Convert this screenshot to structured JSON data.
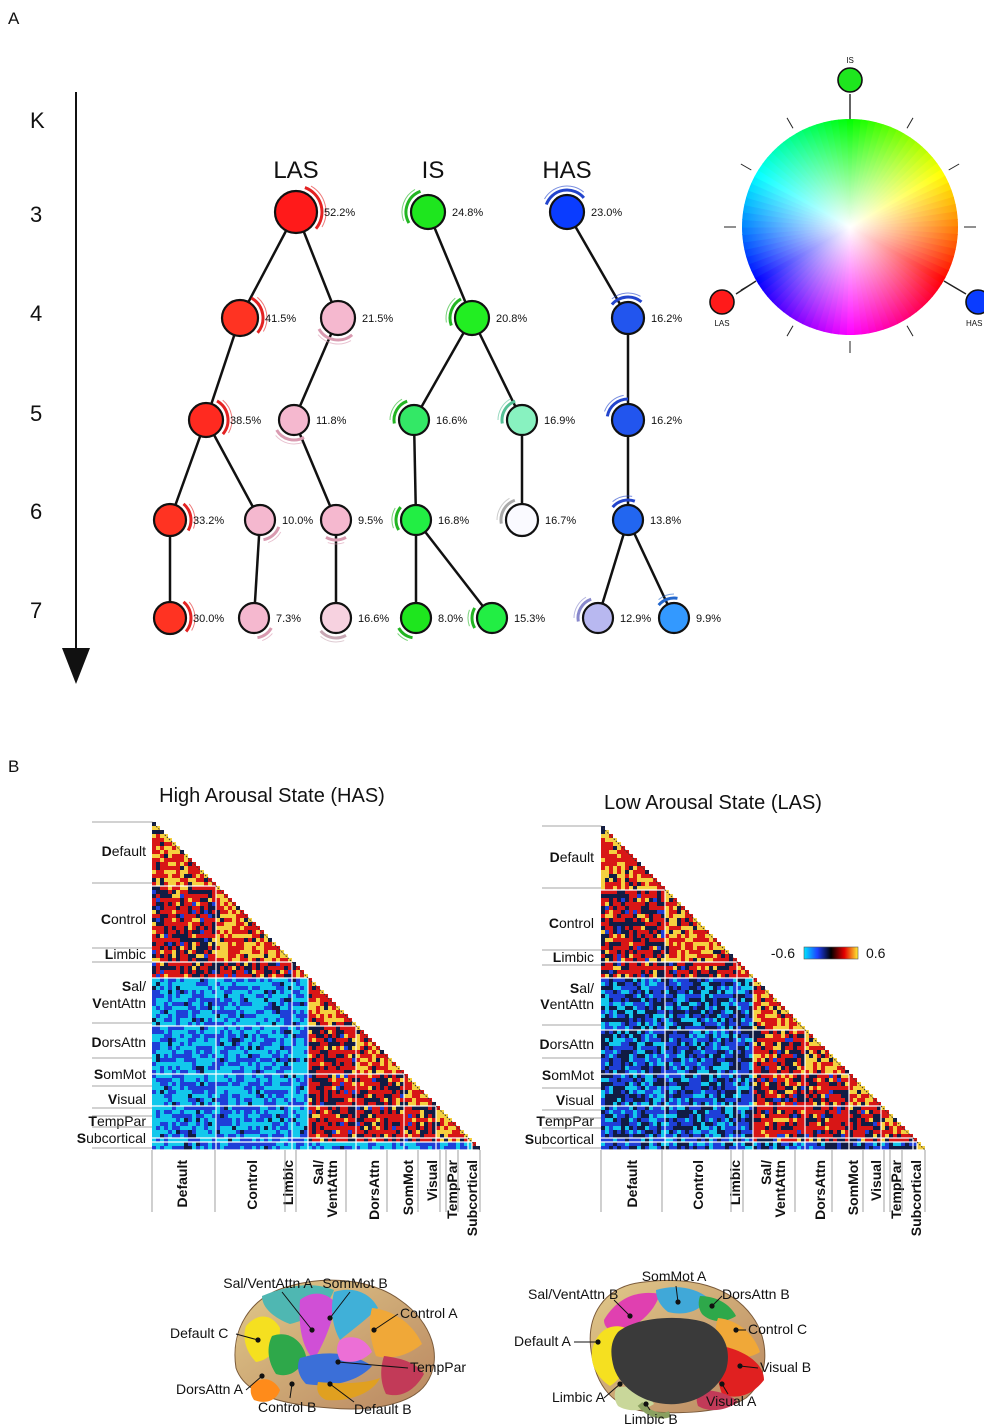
{
  "panel_a": {
    "label": "A",
    "k_label": "K",
    "k_levels": [
      "3",
      "4",
      "5",
      "6",
      "7"
    ],
    "columns": [
      "LAS",
      "IS",
      "HAS"
    ],
    "wheel": {
      "top": "IS",
      "left": "LAS",
      "right": "HAS"
    },
    "nodes": [
      {
        "id": "las3",
        "k": "3",
        "pct": "52.2%",
        "color": "#ff1a1a",
        "arc": "#e32222"
      },
      {
        "id": "is3",
        "k": "3",
        "pct": "24.8%",
        "color": "#1ee61e",
        "arc": "#22b522"
      },
      {
        "id": "has3",
        "k": "3",
        "pct": "23.0%",
        "color": "#0a3cff",
        "arc": "#2244cc"
      },
      {
        "id": "las4a",
        "k": "4",
        "pct": "41.5%",
        "color": "#ff3322",
        "arc": "#e32222"
      },
      {
        "id": "las4b",
        "k": "4",
        "pct": "21.5%",
        "color": "#f5b8cf",
        "arc": "#d99ab0"
      },
      {
        "id": "is4",
        "k": "4",
        "pct": "20.8%",
        "color": "#22ee22",
        "arc": "#22b522"
      },
      {
        "id": "has4",
        "k": "4",
        "pct": "16.2%",
        "color": "#2255ee",
        "arc": "#2244cc"
      },
      {
        "id": "las5a",
        "k": "5",
        "pct": "38.5%",
        "color": "#ff2a20",
        "arc": "#e32222"
      },
      {
        "id": "las5b",
        "k": "5",
        "pct": "11.8%",
        "color": "#f5b8cf",
        "arc": "#d99ab0"
      },
      {
        "id": "is5a",
        "k": "5",
        "pct": "16.6%",
        "color": "#33e866",
        "arc": "#22b522"
      },
      {
        "id": "is5b",
        "k": "5",
        "pct": "16.9%",
        "color": "#88f2c0",
        "arc": "#55c096"
      },
      {
        "id": "has5",
        "k": "5",
        "pct": "16.2%",
        "color": "#2255ee",
        "arc": "#2244cc"
      },
      {
        "id": "las6a",
        "k": "6",
        "pct": "33.2%",
        "color": "#ff3322",
        "arc": "#e32222"
      },
      {
        "id": "las6b",
        "k": "6",
        "pct": "10.0%",
        "color": "#f5b8cf",
        "arc": "#d99ab0"
      },
      {
        "id": "las6c",
        "k": "6",
        "pct": "9.5%",
        "color": "#f5b8cf",
        "arc": "#d99ab0"
      },
      {
        "id": "is6a",
        "k": "6",
        "pct": "16.8%",
        "color": "#22ee44",
        "arc": "#22b522"
      },
      {
        "id": "is6b",
        "k": "6",
        "pct": "16.7%",
        "color": "#fafaff",
        "arc": "#aaaaaa"
      },
      {
        "id": "has6",
        "k": "6",
        "pct": "13.8%",
        "color": "#2266f0",
        "arc": "#2244cc"
      },
      {
        "id": "las7a",
        "k": "7",
        "pct": "30.0%",
        "color": "#ff3322",
        "arc": "#e32222"
      },
      {
        "id": "las7b",
        "k": "7",
        "pct": "7.3%",
        "color": "#f5b8cf",
        "arc": "#d99ab0"
      },
      {
        "id": "las7c",
        "k": "7",
        "pct": "16.6%",
        "color": "#f7d2e0",
        "arc": "#c8a8b4"
      },
      {
        "id": "is7a",
        "k": "7",
        "pct": "8.0%",
        "color": "#1ee61e",
        "arc": "#22b522"
      },
      {
        "id": "is7b",
        "k": "7",
        "pct": "15.3%",
        "color": "#22ee44",
        "arc": "#22b522"
      },
      {
        "id": "has7a",
        "k": "7",
        "pct": "12.9%",
        "color": "#b8b8f0",
        "arc": "#8888cc"
      },
      {
        "id": "has7b",
        "k": "7",
        "pct": "9.9%",
        "color": "#3399ff",
        "arc": "#2266cc"
      }
    ]
  },
  "panel_b": {
    "label": "B",
    "has_title": "High Arousal State (HAS)",
    "las_title": "Low Arousal State (LAS)",
    "colorbar_min": "-0.6",
    "colorbar_max": "0.6",
    "networks": [
      {
        "initial": "D",
        "rest": "efault"
      },
      {
        "initial": "C",
        "rest": "ontrol"
      },
      {
        "initial": "L",
        "rest": "imbic"
      },
      {
        "initial": "S",
        "rest": "al/"
      },
      {
        "initial": "V",
        "rest": "entAttn"
      },
      {
        "initial": "D",
        "rest": "orsAttn"
      },
      {
        "initial": "S",
        "rest": "omMot"
      },
      {
        "initial": "V",
        "rest": "isual"
      },
      {
        "initial": "T",
        "rest": "empPar"
      },
      {
        "initial": "S",
        "rest": "ubcortical"
      }
    ],
    "bottom_labels": [
      "Default",
      "Control",
      "Limbic",
      "Sal/\nVentAttn",
      "DorsAttn",
      "SomMot",
      "Visual",
      "TempPar",
      "Subcortical"
    ],
    "lateral_brain_labels": [
      "Sal/VentAttn A",
      "SomMot B",
      "Control A",
      "Default C",
      "TempPar",
      "DorsAttn A",
      "Control B",
      "Default B"
    ],
    "medial_brain_labels": [
      "SomMot A",
      "Sal/VentAttn B",
      "DorsAttn B",
      "Control C",
      "Default A",
      "Visual B",
      "Limbic A",
      "Visual A",
      "Limbic B"
    ]
  }
}
